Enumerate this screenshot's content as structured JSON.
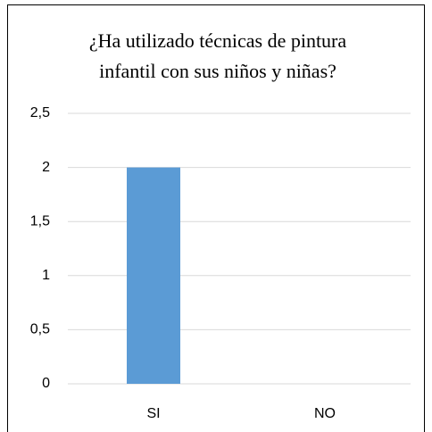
{
  "chart_data": {
    "type": "bar",
    "title": [
      "¿Ha utilizado técnicas de pintura",
      "infantil con sus niños y niñas?"
    ],
    "categories": [
      "SI",
      "NO"
    ],
    "values": [
      2,
      0
    ],
    "color": "#5b9bd5",
    "ylim": [
      0,
      2.5
    ],
    "yticks": [
      0,
      {
        "value": 0.5,
        "label": "0,5"
      },
      1,
      {
        "value": 1.5,
        "label": "1,5"
      },
      2,
      {
        "value": 2.5,
        "label": "2,5"
      }
    ],
    "grid": true
  }
}
